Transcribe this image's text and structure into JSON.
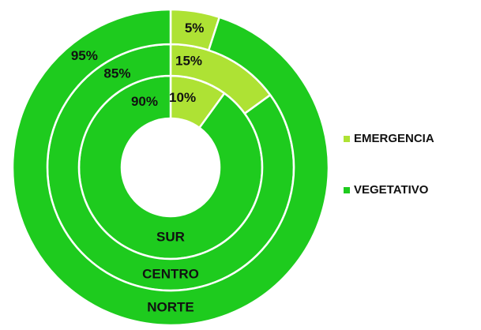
{
  "chart_data": {
    "type": "donut",
    "categories": [
      "SUR",
      "CENTRO",
      "NORTE"
    ],
    "series": [
      {
        "name": "EMERGENCIA",
        "color": "#aee234",
        "values": [
          10,
          15,
          5
        ],
        "value_labels": [
          "10%",
          "15%",
          "5%"
        ]
      },
      {
        "name": "VEGETATIVO",
        "color": "#1ecb1e",
        "values": [
          90,
          85,
          95
        ],
        "value_labels": [
          "90%",
          "85%",
          "95%"
        ]
      }
    ],
    "legend": "right"
  }
}
